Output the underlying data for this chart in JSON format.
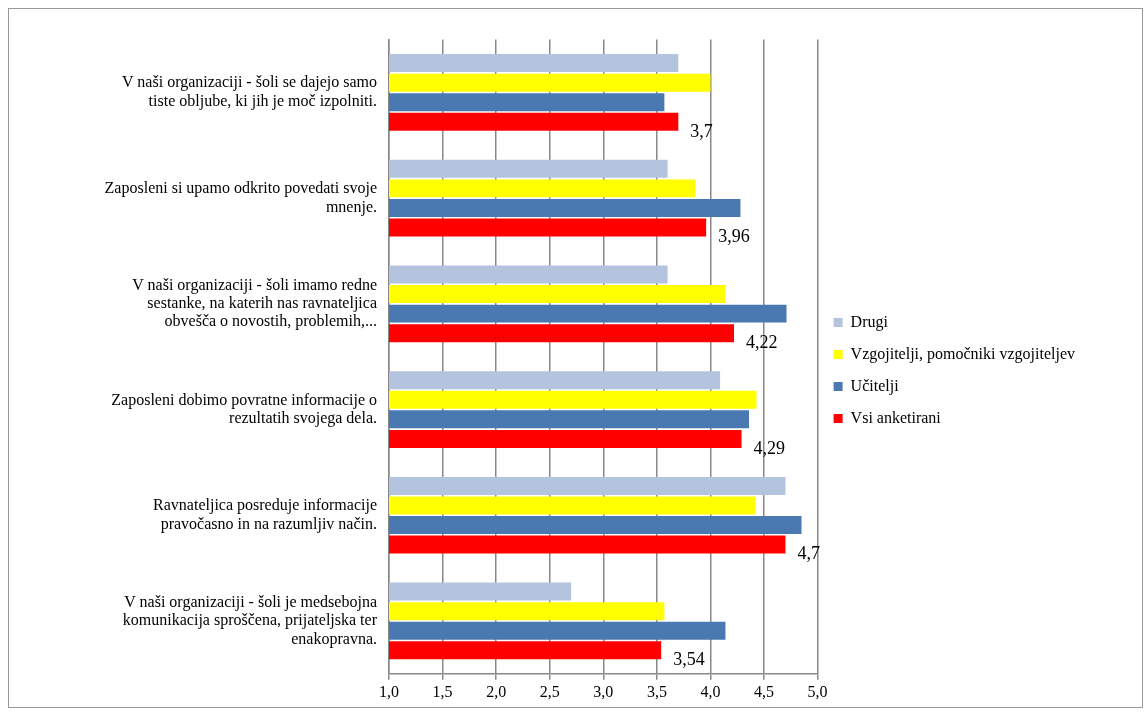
{
  "chart_data": {
    "type": "bar",
    "orientation": "horizontal",
    "categories": [
      "V naši organizaciji - šoli se dajejo samo tiste obljube, ki jih je moč izpolniti.",
      "Zaposleni si upamo odkrito povedati svoje mnenje.",
      "V naši organizaciji - šoli imamo redne sestanke, na katerih nas ravnateljica obvešča o novostih, problemih,...",
      "Zaposleni dobimo povratne informacije o rezultatih svojega dela.",
      "Ravnateljica posreduje informacije pravočasno in na razumljiv način.",
      "V naši organizaciji - šoli je medsebojna komunikacija sproščena, prijateljska ter enakopravna."
    ],
    "series": [
      {
        "name": "Drugi",
        "color": "#b4c3de",
        "values": [
          3.7,
          3.6,
          3.6,
          4.09,
          4.7,
          2.7
        ]
      },
      {
        "name": "Vzgojitelji, pomočniki vzgojiteljev",
        "color": "#ffff00",
        "values": [
          4.0,
          3.86,
          4.14,
          4.43,
          4.42,
          3.57
        ]
      },
      {
        "name": "Učitelji",
        "color": "#4a78b0",
        "values": [
          3.57,
          4.28,
          4.71,
          4.36,
          4.85,
          4.14
        ]
      },
      {
        "name": "Vsi anketirani",
        "color": "#ff0000",
        "values": [
          3.7,
          3.96,
          4.22,
          4.29,
          4.7,
          3.54
        ],
        "value_labels": [
          "3,7",
          "3,96",
          "4,22",
          "4,29",
          "4,7",
          "3,54"
        ]
      }
    ],
    "xlim": [
      1,
      5
    ],
    "xticks": [
      {
        "value": 1,
        "label": "1,0"
      },
      {
        "value": 1.5,
        "label": "1,5"
      },
      {
        "value": 2,
        "label": "2,0"
      },
      {
        "value": 2.5,
        "label": "2,5"
      },
      {
        "value": 3,
        "label": "3,0"
      },
      {
        "value": 3.5,
        "label": "3,5"
      },
      {
        "value": 4,
        "label": "4,0"
      },
      {
        "value": 4.5,
        "label": "4,5"
      },
      {
        "value": 5,
        "label": "5,0"
      }
    ],
    "grid": "x",
    "legend": "right"
  }
}
